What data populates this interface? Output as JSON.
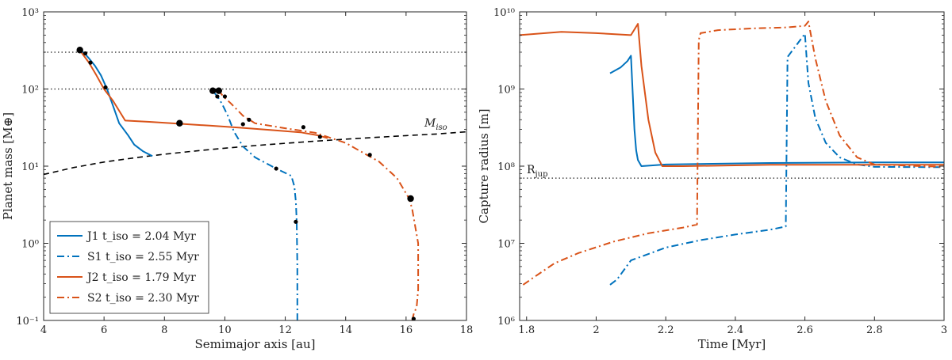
{
  "chart_data": [
    {
      "type": "line",
      "id": "left",
      "xlabel": "Semimajor axis [au]",
      "ylabel": "Planet mass [M⊕]",
      "xscale": "linear",
      "yscale": "log",
      "xlim": [
        4,
        18
      ],
      "ylim": [
        0.1,
        1000
      ],
      "xticks": [
        4,
        6,
        8,
        10,
        12,
        14,
        16,
        18
      ],
      "yticks": [
        0.1,
        1,
        10,
        100,
        1000
      ],
      "ytick_labels": [
        "10⁻¹",
        "10⁰",
        "10¹",
        "10²",
        "10³"
      ],
      "hlines": [
        100,
        300
      ],
      "isolation_label": "Miso",
      "isolation_curve": {
        "x": [
          4,
          5,
          6,
          7,
          8,
          9,
          10,
          11,
          12,
          13,
          14,
          15,
          16,
          17,
          18
        ],
        "y": [
          7.8,
          9.6,
          11.3,
          12.8,
          14.3,
          15.7,
          17.1,
          18.5,
          19.8,
          21.1,
          22.4,
          23.6,
          24.9,
          26.1,
          27.9
        ]
      },
      "series": [
        {
          "name": "J1",
          "legend": "J1 t_iso = 2.04 Myr",
          "color": "#0072BD",
          "style": "solid",
          "x": [
            7.6,
            7.3,
            7.0,
            6.8,
            6.5,
            6.3,
            6.1,
            5.9,
            5.7,
            5.5,
            5.35,
            5.2
          ],
          "y": [
            13.5,
            15.5,
            19,
            25,
            36,
            60,
            100,
            150,
            200,
            250,
            290,
            320
          ]
        },
        {
          "name": "S1",
          "legend": "S1 t_iso = 2.55 Myr",
          "color": "#0072BD",
          "style": "dashdot",
          "x": [
            12.4,
            12.4,
            12.38,
            12.35,
            12.3,
            12.2,
            11.7,
            11.0,
            10.6,
            10.3,
            10.1,
            9.9,
            9.75,
            9.6
          ],
          "y": [
            0.1,
            0.5,
            1.9,
            3.5,
            5.5,
            7.5,
            9.3,
            13,
            18,
            28,
            45,
            65,
            80,
            95
          ]
        },
        {
          "name": "J2",
          "legend": "J2 t_iso = 1.79 Myr",
          "color": "#D95319",
          "style": "solid",
          "x": [
            13.4,
            13.1,
            12.5,
            11.5,
            10.5,
            9.5,
            8.5,
            7.5,
            6.7,
            6.3,
            6.0,
            5.75,
            5.5,
            5.3,
            5.2
          ],
          "y": [
            23,
            25,
            27.5,
            29.5,
            31.5,
            33.5,
            35.5,
            37.5,
            39,
            70,
            100,
            150,
            220,
            280,
            320
          ]
        },
        {
          "name": "S2",
          "legend": "S2 t_iso = 2.30 Myr",
          "color": "#D95319",
          "style": "dashdot",
          "x": [
            16.2,
            16.25,
            16.35,
            16.4,
            16.4,
            16.2,
            16.1,
            15.7,
            15.1,
            14.7,
            14.0,
            13.0,
            12.0,
            11.0,
            10.6,
            10.2,
            9.95,
            9.8
          ],
          "y": [
            0.1,
            0.12,
            0.15,
            0.25,
            1.0,
            2.8,
            3.8,
            7,
            11.5,
            14,
            20,
            27,
            31,
            36,
            45,
            65,
            80,
            95
          ]
        }
      ],
      "markers_small": [
        {
          "x": 5.38,
          "y": 290
        },
        {
          "x": 5.55,
          "y": 220
        },
        {
          "x": 6.05,
          "y": 105
        },
        {
          "x": 9.75,
          "y": 80
        },
        {
          "x": 10.0,
          "y": 80
        },
        {
          "x": 10.6,
          "y": 35
        },
        {
          "x": 10.8,
          "y": 40
        },
        {
          "x": 11.7,
          "y": 9.3
        },
        {
          "x": 12.35,
          "y": 1.9
        },
        {
          "x": 12.6,
          "y": 32
        },
        {
          "x": 13.15,
          "y": 24
        },
        {
          "x": 14.8,
          "y": 14
        },
        {
          "x": 16.25,
          "y": 0.105
        }
      ],
      "markers_large": [
        {
          "x": 5.2,
          "y": 320
        },
        {
          "x": 8.5,
          "y": 36
        },
        {
          "x": 9.6,
          "y": 95
        },
        {
          "x": 9.8,
          "y": 95
        },
        {
          "x": 16.15,
          "y": 3.8
        }
      ]
    },
    {
      "type": "line",
      "id": "right",
      "xlabel": "Time [Myr]",
      "ylabel": "Capture radius [m]",
      "xscale": "linear",
      "yscale": "log",
      "xlim": [
        1.78,
        3.0
      ],
      "ylim": [
        1000000,
        10000000000
      ],
      "xticks": [
        1.8,
        2,
        2.2,
        2.4,
        2.6,
        2.8,
        3
      ],
      "xtick_labels": [
        "1.8",
        "2",
        "2.2",
        "2.4",
        "2.6",
        "2.8",
        "3"
      ],
      "yticks": [
        1000000,
        10000000,
        100000000,
        1000000000,
        10000000000
      ],
      "ytick_labels": [
        "10⁶",
        "10⁷",
        "10⁸",
        "10⁹",
        "10¹⁰"
      ],
      "hline": 70000000,
      "rjup_label": "Rjup",
      "series": [
        {
          "name": "J1",
          "color": "#0072BD",
          "style": "solid",
          "x": [
            2.04,
            2.07,
            2.09,
            2.1,
            2.11,
            2.115,
            2.12,
            2.13,
            2.2,
            2.5,
            2.8,
            3.0
          ],
          "y": [
            1600000000,
            1900000000,
            2300000000,
            2700000000,
            300000000,
            160000000,
            120000000,
            100000000,
            105000000,
            110000000,
            112000000,
            112000000
          ]
        },
        {
          "name": "S1",
          "color": "#0072BD",
          "style": "dashdot",
          "x": [
            2.04,
            2.06,
            2.1,
            2.2,
            2.3,
            2.4,
            2.5,
            2.545,
            2.55,
            2.6,
            2.61,
            2.63,
            2.66,
            2.7,
            2.75,
            2.8,
            3.0
          ],
          "y": [
            2900000,
            3400000,
            6000000,
            8800000,
            11000000,
            13000000,
            15000000,
            16500000,
            2600000000,
            5200000000,
            1200000000,
            420000000,
            200000000,
            130000000,
            105000000,
            98000000,
            97000000
          ]
        },
        {
          "name": "J2",
          "color": "#D95319",
          "style": "solid",
          "x": [
            1.78,
            1.9,
            2.0,
            2.1,
            2.12,
            2.13,
            2.15,
            2.17,
            2.19,
            2.25,
            2.5,
            3.0
          ],
          "y": [
            5000000000,
            5500000000,
            5300000000,
            5000000000,
            7000000000,
            2000000000,
            400000000,
            150000000,
            100000000,
            100000000,
            104000000,
            104000000
          ]
        },
        {
          "name": "S2",
          "color": "#D95319",
          "style": "dashdot",
          "x": [
            1.79,
            1.82,
            1.88,
            1.95,
            2.05,
            2.15,
            2.25,
            2.29,
            2.295,
            2.3,
            2.35,
            2.45,
            2.55,
            2.6,
            2.61,
            2.63,
            2.66,
            2.7,
            2.75,
            2.8,
            3.0
          ],
          "y": [
            2900000,
            3600000,
            5500000,
            7500000,
            10500000,
            13500000,
            16000000,
            17500000,
            4300000000,
            5300000000,
            5800000000,
            6100000000,
            6300000000,
            6600000000,
            7500000000,
            2500000000,
            700000000,
            250000000,
            130000000,
            105000000,
            98000000
          ]
        }
      ]
    }
  ]
}
